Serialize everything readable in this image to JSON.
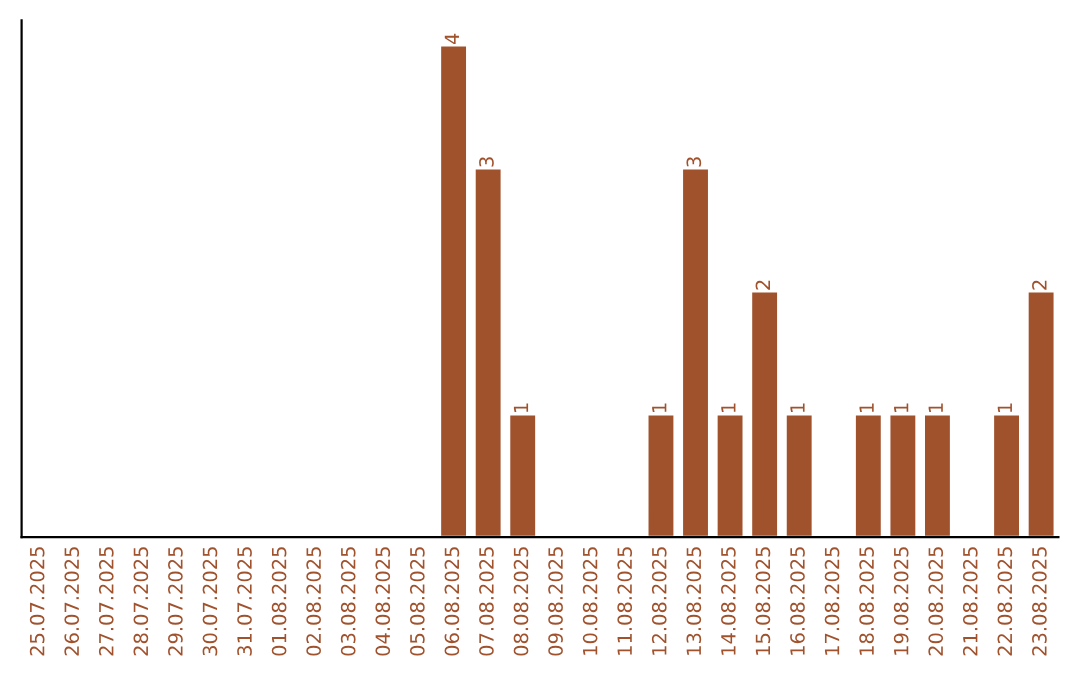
{
  "chart_data": {
    "type": "bar",
    "categories": [
      "25.07.2025",
      "26.07.2025",
      "27.07.2025",
      "28.07.2025",
      "29.07.2025",
      "30.07.2025",
      "31.07.2025",
      "01.08.2025",
      "02.08.2025",
      "03.08.2025",
      "04.08.2025",
      "05.08.2025",
      "06.08.2025",
      "07.08.2025",
      "08.08.2025",
      "09.08.2025",
      "10.08.2025",
      "11.08.2025",
      "12.08.2025",
      "13.08.2025",
      "14.08.2025",
      "15.08.2025",
      "16.08.2025",
      "17.08.2025",
      "18.08.2025",
      "19.08.2025",
      "20.08.2025",
      "21.08.2025",
      "22.08.2025",
      "23.08.2025"
    ],
    "values": [
      null,
      null,
      null,
      null,
      null,
      null,
      null,
      null,
      null,
      null,
      null,
      null,
      4,
      3,
      1,
      null,
      null,
      null,
      1,
      3,
      1,
      2,
      1,
      null,
      1,
      1,
      1,
      null,
      1,
      2
    ],
    "data_labels": true,
    "color": "#a0522d"
  }
}
